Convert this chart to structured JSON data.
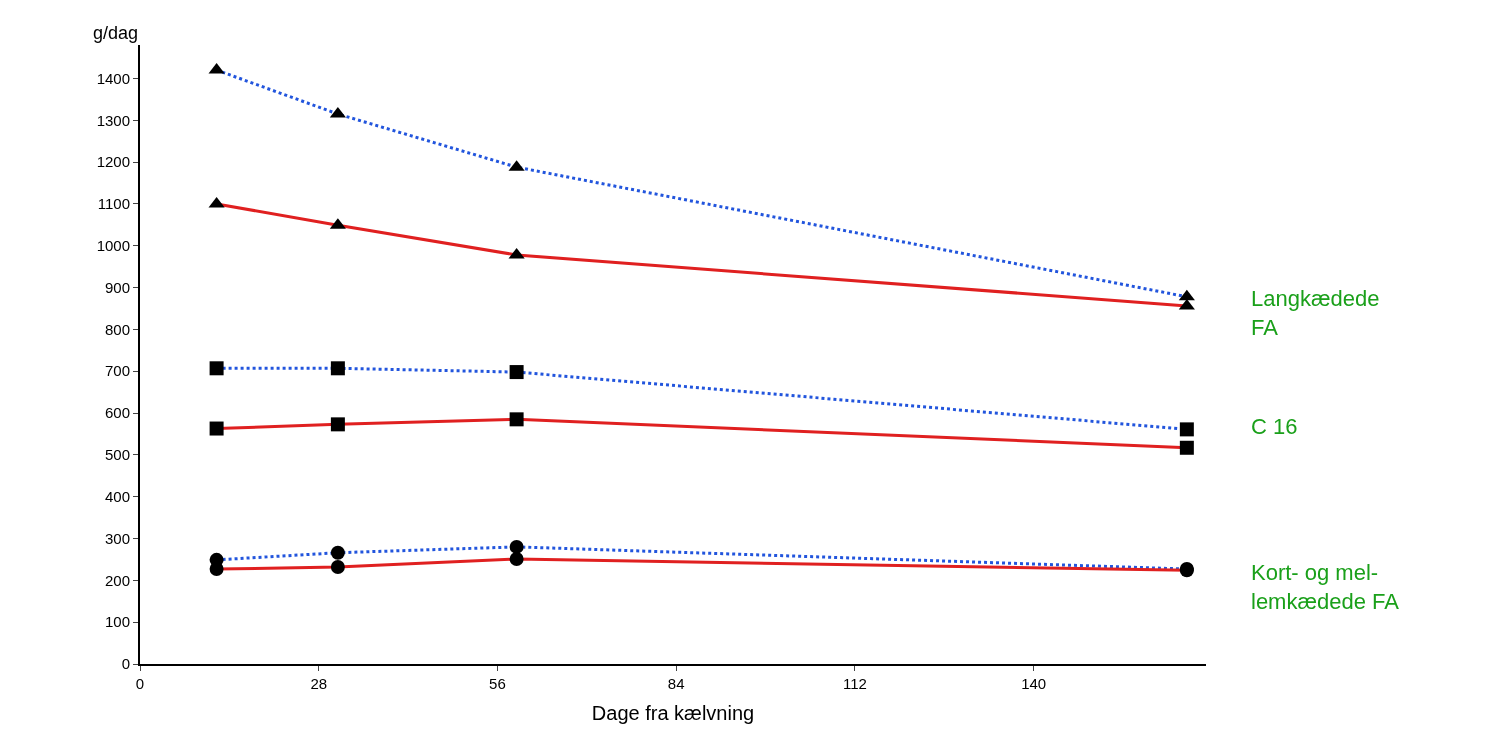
{
  "chart_data": {
    "type": "line",
    "xlabel": "Dage fra kælvning",
    "ylabel": "g/dag",
    "x": [
      12,
      31,
      59,
      164
    ],
    "series": [
      {
        "color": "#2255dd",
        "line_style": "dotted",
        "marker": "triangle",
        "values": [
          1420,
          1315,
          1188,
          878
        ]
      },
      {
        "color": "#e02020",
        "line_style": "solid",
        "marker": "triangle",
        "values": [
          1100,
          1049,
          978,
          856
        ]
      },
      {
        "color": "#2255dd",
        "line_style": "dotted",
        "marker": "square",
        "values": [
          707,
          707,
          698,
          561
        ]
      },
      {
        "color": "#e02020",
        "line_style": "solid",
        "marker": "square",
        "values": [
          563,
          573,
          585,
          517
        ]
      },
      {
        "color": "#2255dd",
        "line_style": "dotted",
        "marker": "circle",
        "values": [
          249,
          266,
          280,
          227
        ]
      },
      {
        "color": "#e02020",
        "line_style": "solid",
        "marker": "circle",
        "values": [
          227,
          232,
          251,
          224
        ]
      }
    ],
    "annotations": [
      "Langkædede\nFA",
      "C 16",
      "Kort- og mel-\nlemkædede FA"
    ],
    "xlim": [
      0,
      167
    ],
    "xticks": [
      0,
      28,
      56,
      84,
      112,
      140
    ],
    "ylim": [
      0,
      1480
    ],
    "yticks": [
      0,
      100,
      200,
      300,
      400,
      500,
      600,
      700,
      800,
      900,
      1000,
      1100,
      1200,
      1300,
      1400
    ]
  }
}
